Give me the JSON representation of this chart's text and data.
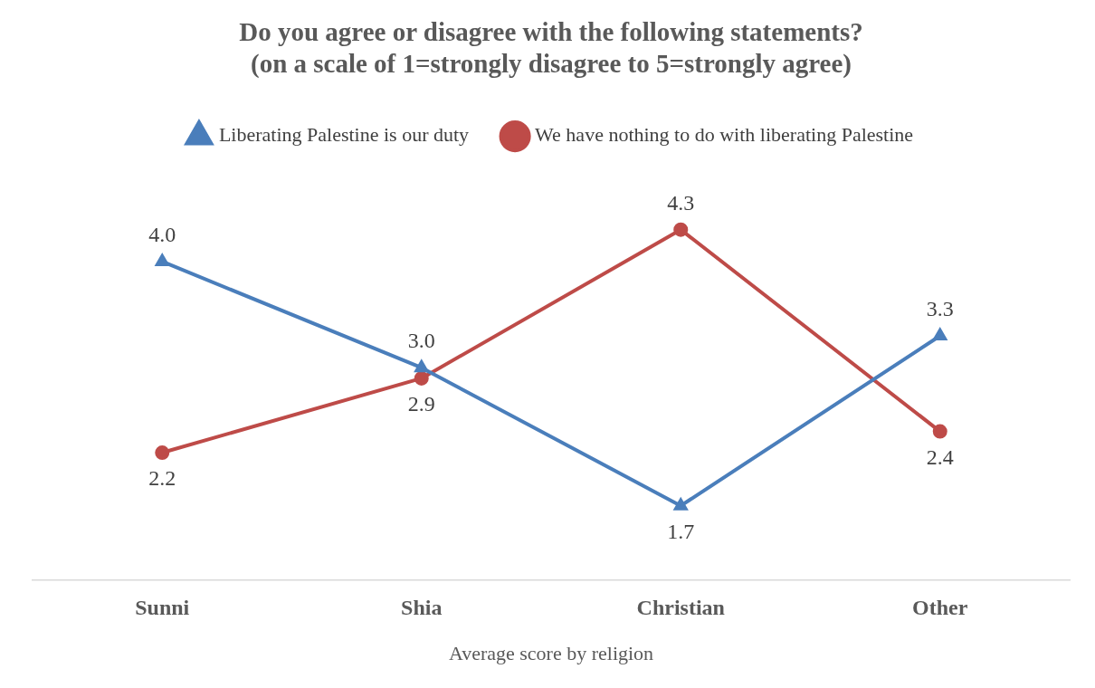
{
  "chart_data": {
    "type": "line",
    "title": "Do you agree or disagree with the following statements?\n(on a scale of 1=strongly disagree to 5=strongly agree)",
    "xlabel": "Average score by religion",
    "categories": [
      "Sunni",
      "Shia",
      "Christian",
      "Other"
    ],
    "series": [
      {
        "name": "Liberating Palestine is our duty",
        "color": "#4a7ebb",
        "marker": "triangle",
        "values": [
          4.0,
          3.0,
          1.7,
          3.3
        ],
        "value_labels": [
          "4.0",
          "3.0",
          "1.7",
          "3.3"
        ]
      },
      {
        "name": "We have nothing to do with liberating Palestine",
        "color": "#be4b48",
        "marker": "circle",
        "values": [
          2.2,
          2.9,
          4.3,
          2.4
        ],
        "value_labels": [
          "2.2",
          "2.9",
          "4.3",
          "2.4"
        ]
      }
    ],
    "tick_labels": "x",
    "grid": false,
    "legend": "top"
  }
}
